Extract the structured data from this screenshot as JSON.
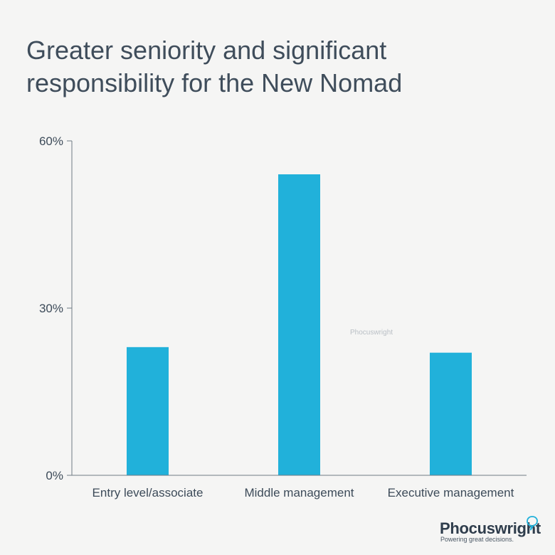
{
  "page": {
    "title": "Greater seniority and significant responsibility for the New Nomad",
    "watermark": "Phocuswright",
    "brand": {
      "name": "Phocuswright",
      "tagline": "Powering great decisions."
    },
    "colors": {
      "bar": "#21b1da",
      "axis": "#707a84",
      "text": "#3d4b59"
    }
  },
  "chart_data": {
    "type": "bar",
    "categories": [
      "Entry level/associate",
      "Middle management",
      "Executive management"
    ],
    "values": [
      23,
      54,
      22
    ],
    "ylim": [
      0,
      60
    ],
    "yticks": [
      0,
      30,
      60
    ],
    "ytick_labels": [
      "0%",
      "30%",
      "60%"
    ],
    "grid": false,
    "legend": "none"
  }
}
